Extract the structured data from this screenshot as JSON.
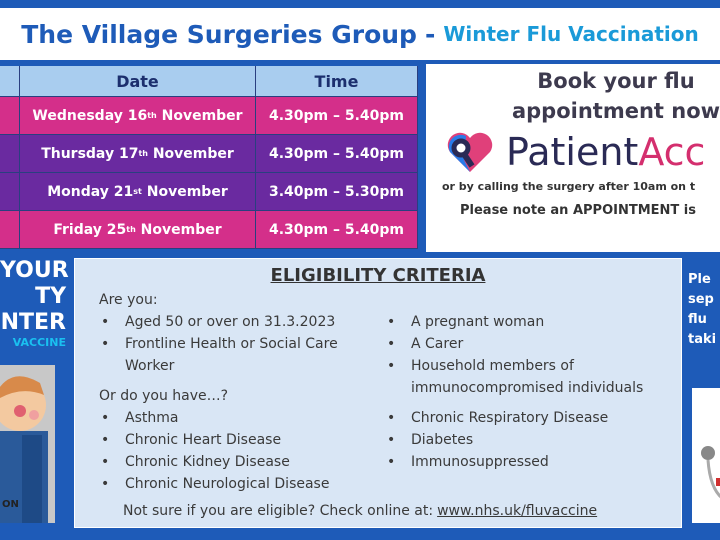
{
  "header": {
    "title": "The Village Surgeries Group",
    "separator": "-",
    "subtitle": "Winter Flu Vaccination"
  },
  "schedule": {
    "columns": [
      "Date",
      "Time"
    ],
    "rows": [
      {
        "day": "Wednesday 16",
        "suffix": "th",
        "month": "November",
        "time": "4.30pm – 5.40pm",
        "color": "#d42f8a"
      },
      {
        "day": "Thursday 17",
        "suffix": "th",
        "month": "November",
        "time": "4.30pm – 5.40pm",
        "color": "#6a2aa0"
      },
      {
        "day": "Monday 21",
        "suffix": "st",
        "month": "November",
        "time": "3.40pm – 5.30pm",
        "color": "#6a2aa0"
      },
      {
        "day": "Friday 25",
        "suffix": "th",
        "month": "November",
        "time": "4.30pm – 5.40pm",
        "color": "#d42f8a"
      }
    ]
  },
  "booking": {
    "line1": "Book your flu",
    "line2": "appointment now",
    "logo_a": "Patient",
    "logo_b": "Acc",
    "call": "or by calling the surgery after 10am on t",
    "note": "Please note an APPOINTMENT is"
  },
  "left_panel": {
    "lines": [
      "YOUR",
      "TY",
      "NTER"
    ],
    "small": "VACCINE",
    "pic_text": "ON"
  },
  "eligibility": {
    "title": "ELIGIBILITY CRITERIA",
    "q1": "Are you:",
    "left1": [
      "Aged 50 or over on 31.3.2023",
      "Frontline Health or Social Care Worker"
    ],
    "right1": [
      "A pregnant woman",
      "A Carer",
      "Household members of immunocompromised individuals"
    ],
    "q2": "Or do you have…?",
    "left2": [
      "Asthma",
      "Chronic Heart Disease",
      "Chronic Kidney Disease",
      "Chronic Neurological Disease"
    ],
    "right2": [
      "Chronic Respiratory Disease",
      "Diabetes",
      "Immunosuppressed"
    ],
    "footer": "Not sure if you are eligible? Check online at:",
    "link": "www.nhs.uk/fluvaccine"
  },
  "right_panel": {
    "lines": [
      "Ple",
      "sep",
      "flu",
      "taki"
    ]
  }
}
